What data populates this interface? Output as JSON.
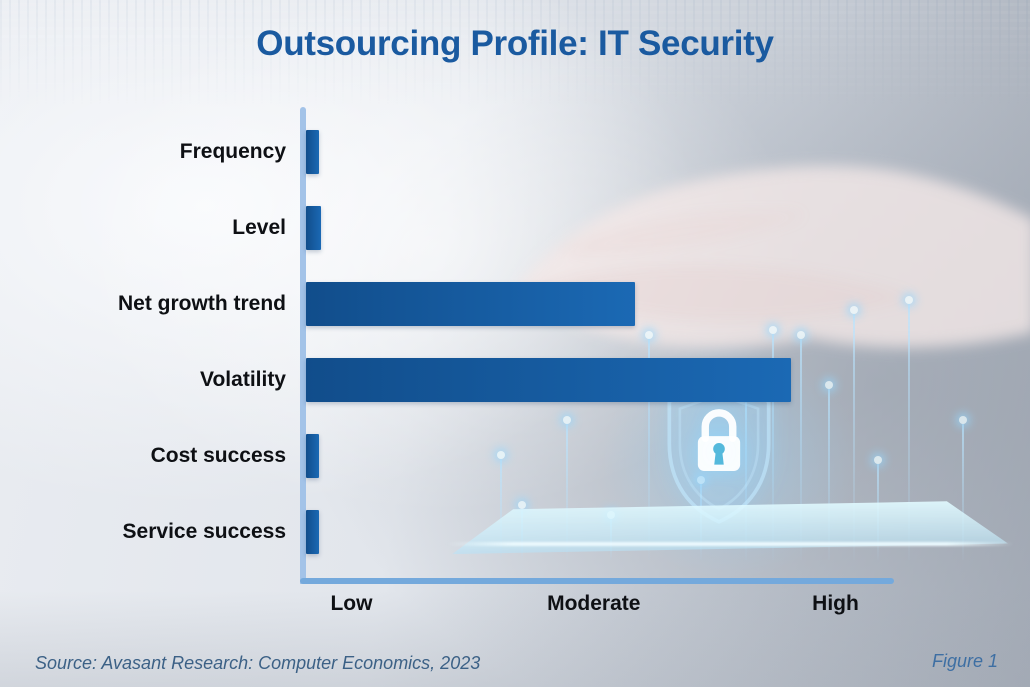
{
  "title": "Outsourcing Profile: IT Security",
  "chart_data": {
    "type": "bar",
    "orientation": "horizontal",
    "title": "Outsourcing Profile: IT Security",
    "categories": [
      "Frequency",
      "Level",
      "Net growth trend",
      "Volatility",
      "Cost success",
      "Service success"
    ],
    "values_pct_of_axis": [
      2.2,
      2.5,
      56.0,
      82.6,
      2.2,
      2.2
    ],
    "value_ratings": [
      "very low",
      "very low",
      "moderate",
      "high",
      "very low",
      "very low"
    ],
    "x_ticks": [
      {
        "label": "Low",
        "pos_pct": 8.2
      },
      {
        "label": "Moderate",
        "pos_pct": 49.2
      },
      {
        "label": "High",
        "pos_pct": 90.1
      }
    ],
    "x_axis_scale": "qualitative Low to High",
    "grid": false,
    "legend": false
  },
  "footer": {
    "source": "Source: Avasant Research: Computer Economics, 2023",
    "figure": "Figure 1"
  },
  "colors": {
    "title": "#1a5aa0",
    "bar-start": "#114d8b",
    "bar-end": "#1b69b4",
    "axis-v": "#a3c3e8",
    "axis-h": "#74a9dc",
    "label": "#0e1014",
    "source": "#3c6186",
    "figure": "#3e6fa3"
  }
}
